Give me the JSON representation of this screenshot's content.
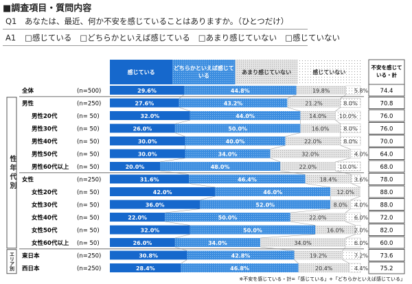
{
  "header": {
    "title": "■調査項目・質問内容"
  },
  "question": {
    "label": "Q1",
    "text": "あなたは、最近、何か不安を感じていることはありますか。（ひとつだけ）"
  },
  "answer": {
    "label": "A1",
    "options": [
      "□感じている",
      "□どちらかといえば感じている",
      "□あまり感じていない",
      "□感じていない"
    ]
  },
  "chart_data": {
    "type": "bar",
    "orientation": "horizontal",
    "stacked": true,
    "unit": "%",
    "xlim": [
      0,
      100
    ],
    "legend": [
      "感じている",
      "どちらかといえば感じている",
      "あまり感じていない",
      "感じていない"
    ],
    "colors": [
      "#1668cc",
      "#3d8ee0",
      "#d6d6d6",
      "#ffffff"
    ],
    "total_header": "不安を感じている・計",
    "groups": [
      {
        "label": "性年代別",
        "from": 1,
        "to": 12
      },
      {
        "label": "エリア別",
        "from": 13,
        "to": 14
      }
    ],
    "rows": [
      {
        "label": "全体",
        "n": "(n=500)",
        "values": [
          29.6,
          44.8,
          19.8,
          5.8
        ],
        "total": "74.4"
      },
      {
        "label": "男性",
        "n": "(n=250)",
        "values": [
          27.6,
          43.2,
          21.2,
          8.0
        ],
        "total": "70.8"
      },
      {
        "label": "男性20代",
        "n": "(n=  50)",
        "values": [
          32.0,
          44.0,
          14.0,
          10.0
        ],
        "total": "76.0"
      },
      {
        "label": "男性30代",
        "n": "(n=  50)",
        "values": [
          26.0,
          50.0,
          16.0,
          8.0
        ],
        "total": "76.0"
      },
      {
        "label": "男性40代",
        "n": "(n=  50)",
        "values": [
          30.0,
          40.0,
          22.0,
          8.0
        ],
        "total": "70.0"
      },
      {
        "label": "男性50代",
        "n": "(n=  50)",
        "values": [
          30.0,
          34.0,
          32.0,
          4.0
        ],
        "total": "64.0"
      },
      {
        "label": "男性60代以上",
        "n": "(n=  50)",
        "values": [
          20.0,
          48.0,
          22.0,
          10.0
        ],
        "total": "68.0"
      },
      {
        "label": "女性",
        "n": "(n=250)",
        "values": [
          31.6,
          46.4,
          18.4,
          3.6
        ],
        "total": "78.0"
      },
      {
        "label": "女性20代",
        "n": "(n=  50)",
        "values": [
          42.0,
          46.0,
          12.0,
          0.0
        ],
        "total": "88.0"
      },
      {
        "label": "女性30代",
        "n": "(n=  50)",
        "values": [
          36.0,
          52.0,
          8.0,
          4.0
        ],
        "total": "88.0"
      },
      {
        "label": "女性40代",
        "n": "(n=  50)",
        "values": [
          22.0,
          50.0,
          22.0,
          6.0
        ],
        "total": "72.0"
      },
      {
        "label": "女性50代",
        "n": "(n=  50)",
        "values": [
          32.0,
          50.0,
          16.0,
          2.0
        ],
        "total": "82.0"
      },
      {
        "label": "女性60代以上",
        "n": "(n=  50)",
        "values": [
          26.0,
          34.0,
          34.0,
          6.0
        ],
        "total": "60.0"
      },
      {
        "label": "東日本",
        "n": "(n=250)",
        "values": [
          30.8,
          42.8,
          19.2,
          7.2
        ],
        "total": "73.6"
      },
      {
        "label": "西日本",
        "n": "(n=250)",
        "values": [
          28.4,
          46.8,
          20.4,
          4.4
        ],
        "total": "75.2"
      }
    ],
    "footnote": "※不安を感じている・計=「感じている」+「どちらかといえば感じている」"
  }
}
